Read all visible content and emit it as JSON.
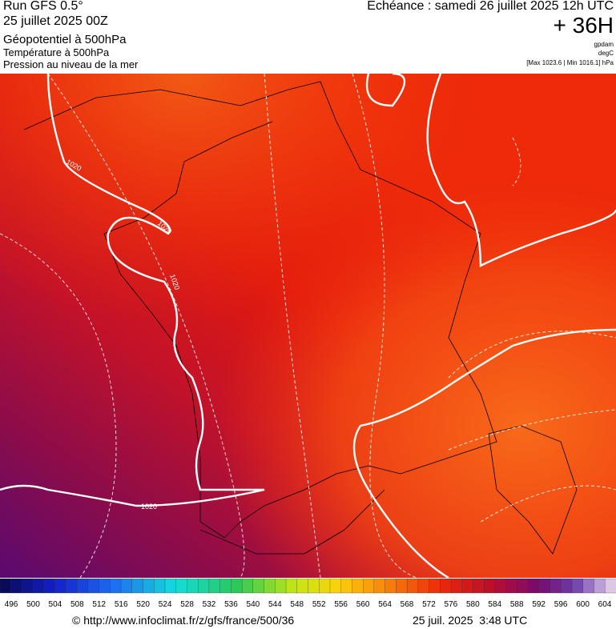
{
  "header": {
    "model": "Run GFS 0.5°",
    "run": "25 juillet 2025 00Z",
    "field1": "Géopotentiel à 500hPa",
    "field2": "Température à 500hPa",
    "field3": "Pression au niveau de la mer",
    "forecast": "Echéance : samedi 26 juillet 2025 12h UTC",
    "lead": "+ 36H",
    "unit1": "gpdam",
    "unit2": "degC",
    "range": "[Max 1023.6 | Min 1016.1] hPa"
  },
  "map": {
    "isobar_labels": [
      "1020",
      "1020",
      "1020",
      "1020"
    ]
  },
  "legend": {
    "labels": [
      496,
      500,
      504,
      508,
      512,
      516,
      520,
      524,
      528,
      532,
      536,
      540,
      544,
      548,
      552,
      556,
      560,
      564,
      568,
      572,
      576,
      580,
      584,
      588,
      592,
      596,
      600,
      604
    ]
  },
  "footer": {
    "source": "© http://www.infoclimat.fr/z/gfs/france/500/36",
    "date": "25 juil. 2025  3:48 UTC"
  }
}
